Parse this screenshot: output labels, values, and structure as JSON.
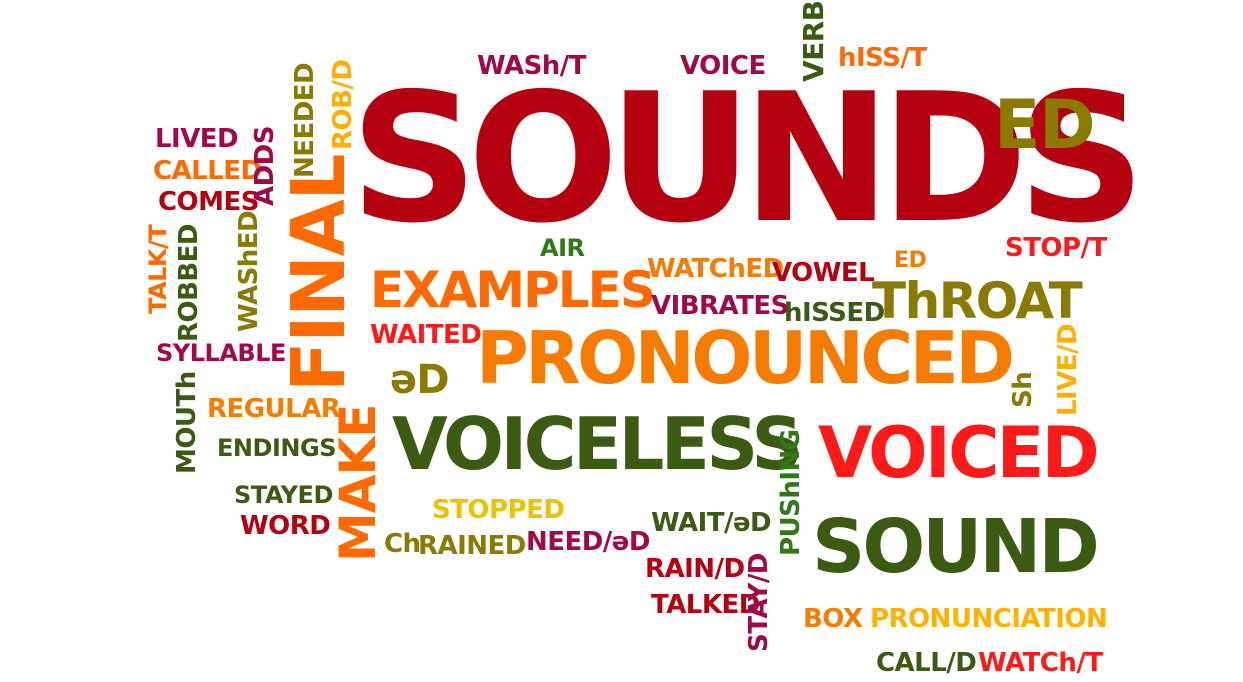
{
  "words": {
    "sounds": "SOUNDS",
    "ed_big": "ED",
    "final": "FINAL",
    "examples": "EXAMPLES",
    "pronounced": "PRONOUNCED",
    "voiceless": "VOICELESS",
    "voiced": "VOICED",
    "sound": "SOUND",
    "throat": "ThROAT",
    "make": "MAKE",
    "schwa_d": "əD",
    "wash_t": "WASh/T",
    "voice": "VOICE",
    "verbs": "VERBS",
    "hiss_t": "hISS/T",
    "rob_d": "ROB/D",
    "needed": "NEEDED",
    "lived": "LIVED",
    "called": "CALLED",
    "comes": "COMES",
    "adds": "ADDS",
    "talk_t": "TALK/T",
    "robbed": "ROBBED",
    "washed": "WAShED",
    "syllable": "SYLLABLE",
    "mouth": "MOUTh",
    "regular": "REGULAR",
    "endings": "ENDINGS",
    "stayed": "STAYED",
    "word": "WORD",
    "air": "AIR",
    "watched": "WATChED",
    "vowel": "VOWEL",
    "ed_small": "ED",
    "stop_t": "STOP/T",
    "vibrates": "VIBRATES",
    "hissed": "hISSED",
    "waited": "WAITED",
    "live_d": "LIVE/D",
    "sh": "Sh",
    "pushing": "PUShING",
    "stopped": "STOPPED",
    "ch": "Ch",
    "rained": "RAINED",
    "need_d": "NEED/əD",
    "wait_d": "WAIT/əD",
    "rain_d": "RAIN/D",
    "talked": "TALKED",
    "stay_d": "STAY/D",
    "box": "BOX",
    "pronunciation": "PRONUNCIATION",
    "call_d": "CALL/D",
    "watch_t": "WATCh/T"
  },
  "colors": {
    "dark_red": "#b50010",
    "orange": "#ff6a00",
    "light_orange": "#f57c00",
    "dark_green": "#3b5a12",
    "olive": "#8a7a00",
    "crimson": "#a0084a",
    "amber": "#ffb000",
    "red": "#ff1a1a",
    "yellow": "#e9c300",
    "green": "#2f7a16"
  }
}
